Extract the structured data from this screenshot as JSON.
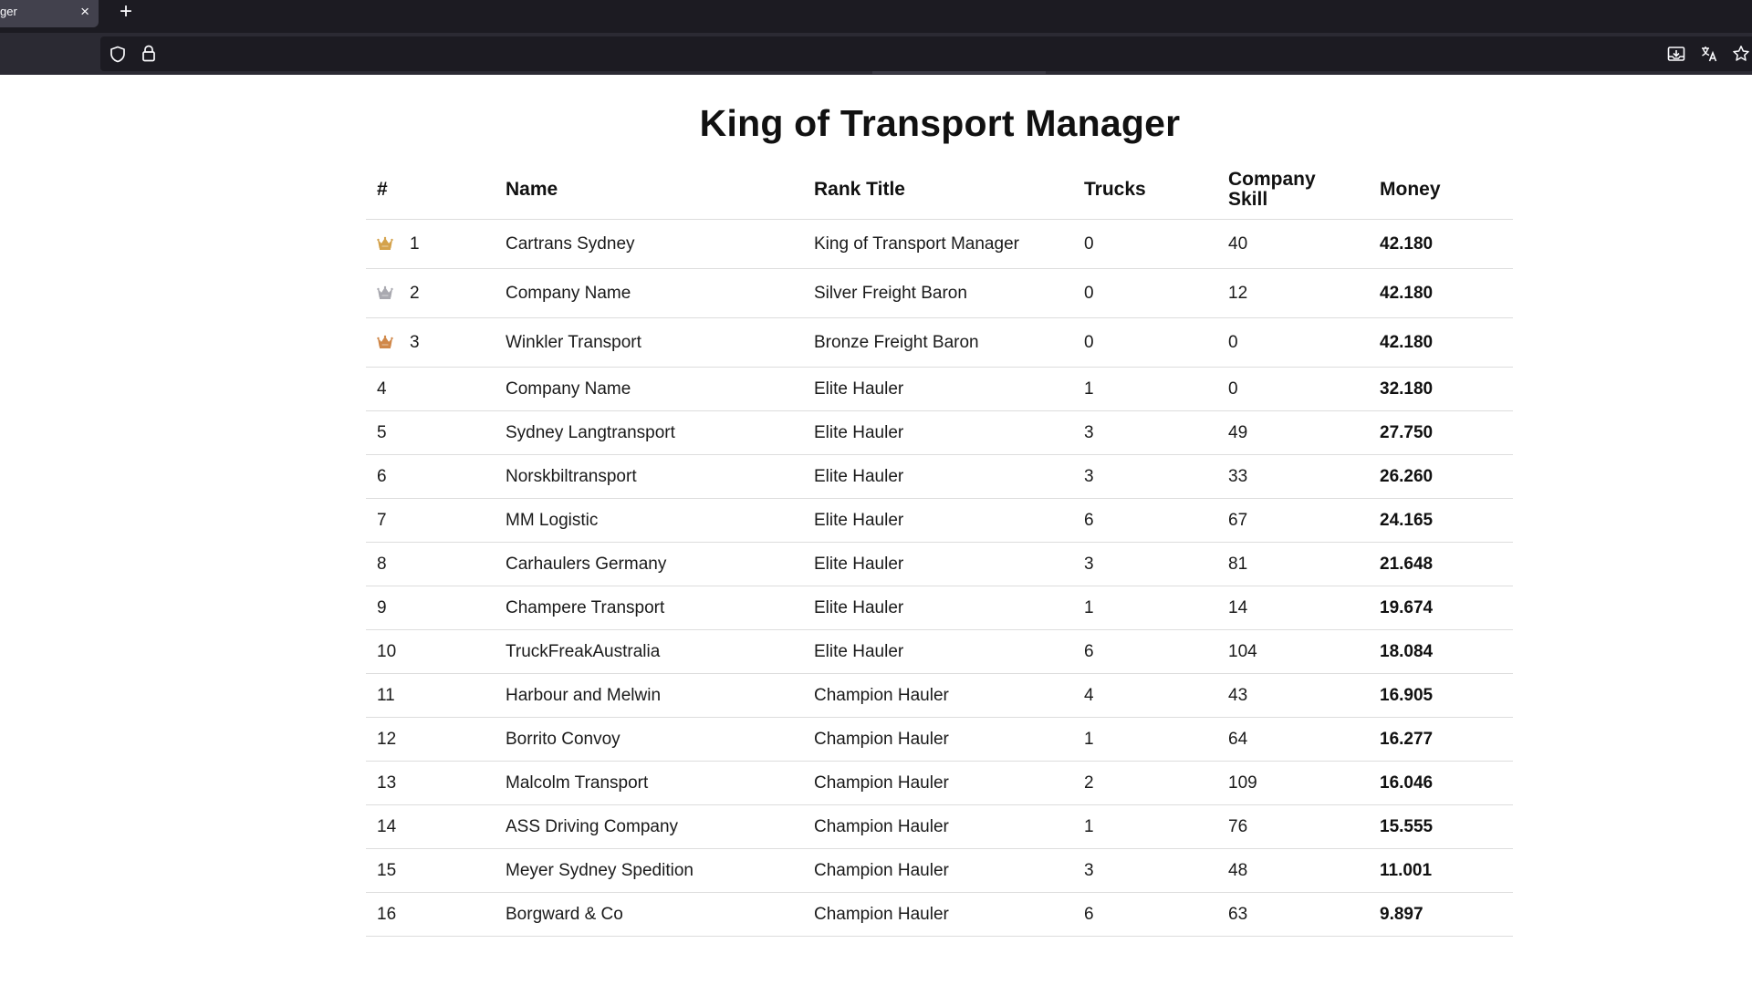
{
  "browser": {
    "tab_title": "ger",
    "tab_close": "×",
    "new_tab": "+"
  },
  "page": {
    "title": "King of Transport Manager"
  },
  "table": {
    "headers": {
      "rank": "#",
      "name": "Name",
      "rank_title": "Rank Title",
      "trucks": "Trucks",
      "company_skill": "Company Skill",
      "money": "Money"
    },
    "rows": [
      {
        "rank": "1",
        "crown": "gold",
        "name": "Cartrans Sydney",
        "rank_title": "King of Transport Manager",
        "trucks": "0",
        "company_skill": "40",
        "money": "42.180"
      },
      {
        "rank": "2",
        "crown": "silver",
        "name": "Company Name",
        "rank_title": "Silver Freight Baron",
        "trucks": "0",
        "company_skill": "12",
        "money": "42.180"
      },
      {
        "rank": "3",
        "crown": "bronze",
        "name": "Winkler Transport",
        "rank_title": "Bronze Freight Baron",
        "trucks": "0",
        "company_skill": "0",
        "money": "42.180"
      },
      {
        "rank": "4",
        "name": "Company Name",
        "rank_title": "Elite Hauler",
        "trucks": "1",
        "company_skill": "0",
        "money": "32.180"
      },
      {
        "rank": "5",
        "name": "Sydney Langtransport",
        "rank_title": "Elite Hauler",
        "trucks": "3",
        "company_skill": "49",
        "money": "27.750"
      },
      {
        "rank": "6",
        "name": "Norskbiltransport",
        "rank_title": "Elite Hauler",
        "trucks": "3",
        "company_skill": "33",
        "money": "26.260"
      },
      {
        "rank": "7",
        "name": "MM Logistic",
        "rank_title": "Elite Hauler",
        "trucks": "6",
        "company_skill": "67",
        "money": "24.165"
      },
      {
        "rank": "8",
        "name": "Carhaulers Germany",
        "rank_title": "Elite Hauler",
        "trucks": "3",
        "company_skill": "81",
        "money": "21.648"
      },
      {
        "rank": "9",
        "name": "Champere Transport",
        "rank_title": "Elite Hauler",
        "trucks": "1",
        "company_skill": "14",
        "money": "19.674"
      },
      {
        "rank": "10",
        "name": "TruckFreakAustralia",
        "rank_title": "Elite Hauler",
        "trucks": "6",
        "company_skill": "104",
        "money": "18.084"
      },
      {
        "rank": "11",
        "name": "Harbour and Melwin",
        "rank_title": "Champion Hauler",
        "trucks": "4",
        "company_skill": "43",
        "money": "16.905"
      },
      {
        "rank": "12",
        "name": "Borrito Convoy",
        "rank_title": "Champion Hauler",
        "trucks": "1",
        "company_skill": "64",
        "money": "16.277"
      },
      {
        "rank": "13",
        "name": "Malcolm Transport",
        "rank_title": "Champion Hauler",
        "trucks": "2",
        "company_skill": "109",
        "money": "16.046"
      },
      {
        "rank": "14",
        "name": "ASS Driving Company",
        "rank_title": "Champion Hauler",
        "trucks": "1",
        "company_skill": "76",
        "money": "15.555"
      },
      {
        "rank": "15",
        "name": "Meyer Sydney Spedition",
        "rank_title": "Champion Hauler",
        "trucks": "3",
        "company_skill": "48",
        "money": "11.001"
      },
      {
        "rank": "16",
        "name": "Borgward & Co",
        "rank_title": "Champion Hauler",
        "trucks": "6",
        "company_skill": "63",
        "money": "9.897"
      }
    ]
  },
  "colors": {
    "crown_gold": "#d4a24c",
    "crown_silver": "#a9a9b0",
    "crown_bronze": "#d0884a",
    "chrome_dark": "#1c1b22",
    "chrome_toolbar": "#2b2a33"
  },
  "icons": {
    "toolbar": [
      "shield-icon",
      "lock-icon",
      "page-download-icon",
      "translate-icon",
      "bookmark-star-icon"
    ],
    "crown": "crown-icon"
  }
}
